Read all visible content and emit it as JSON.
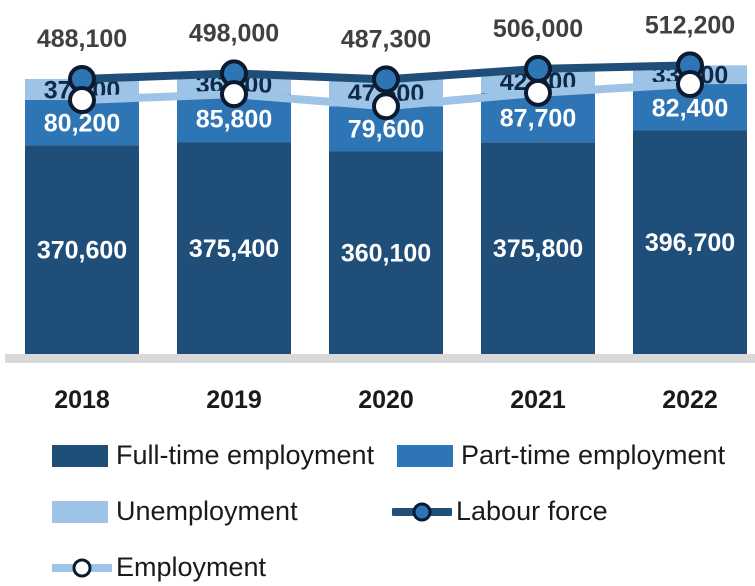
{
  "chart_data": {
    "type": "bar",
    "stacked": true,
    "categories": [
      "2018",
      "2019",
      "2020",
      "2021",
      "2022"
    ],
    "series": [
      {
        "name": "Full-time employment",
        "kind": "bar",
        "color": "#1f4e79",
        "values": [
          370600,
          375400,
          360100,
          375800,
          396700
        ],
        "labels": [
          "370,600",
          "375,400",
          "360,100",
          "375,800",
          "396,700"
        ]
      },
      {
        "name": "Part-time employment",
        "kind": "bar",
        "color": "#2e75b6",
        "values": [
          80200,
          85800,
          79600,
          87700,
          82400
        ],
        "labels": [
          "80,200",
          "85,800",
          "79,600",
          "87,700",
          "82,400"
        ]
      },
      {
        "name": "Unemployment",
        "kind": "bar",
        "color": "#9dc3e6",
        "values": [
          37400,
          36700,
          47600,
          42500,
          33200
        ],
        "labels": [
          "37,400",
          "36,700",
          "47,600",
          "42,500",
          "33,200"
        ]
      },
      {
        "name": "Labour force",
        "kind": "line",
        "color": "#1f4e79",
        "marker_fill": "#2e75b6",
        "values": [
          488100,
          498000,
          487300,
          506000,
          512200
        ],
        "labels": [
          "488,100",
          "498,000",
          "487,300",
          "506,000",
          "512,200"
        ]
      },
      {
        "name": "Employment",
        "kind": "line",
        "color": "#9dc3e6",
        "marker_fill": "#ffffff",
        "values": [
          450800,
          461200,
          439700,
          463500,
          479100
        ]
      }
    ],
    "ylim": [
      0,
      520000
    ],
    "grid": false,
    "legend_position": "bottom",
    "xlabel": "",
    "ylabel": ""
  }
}
